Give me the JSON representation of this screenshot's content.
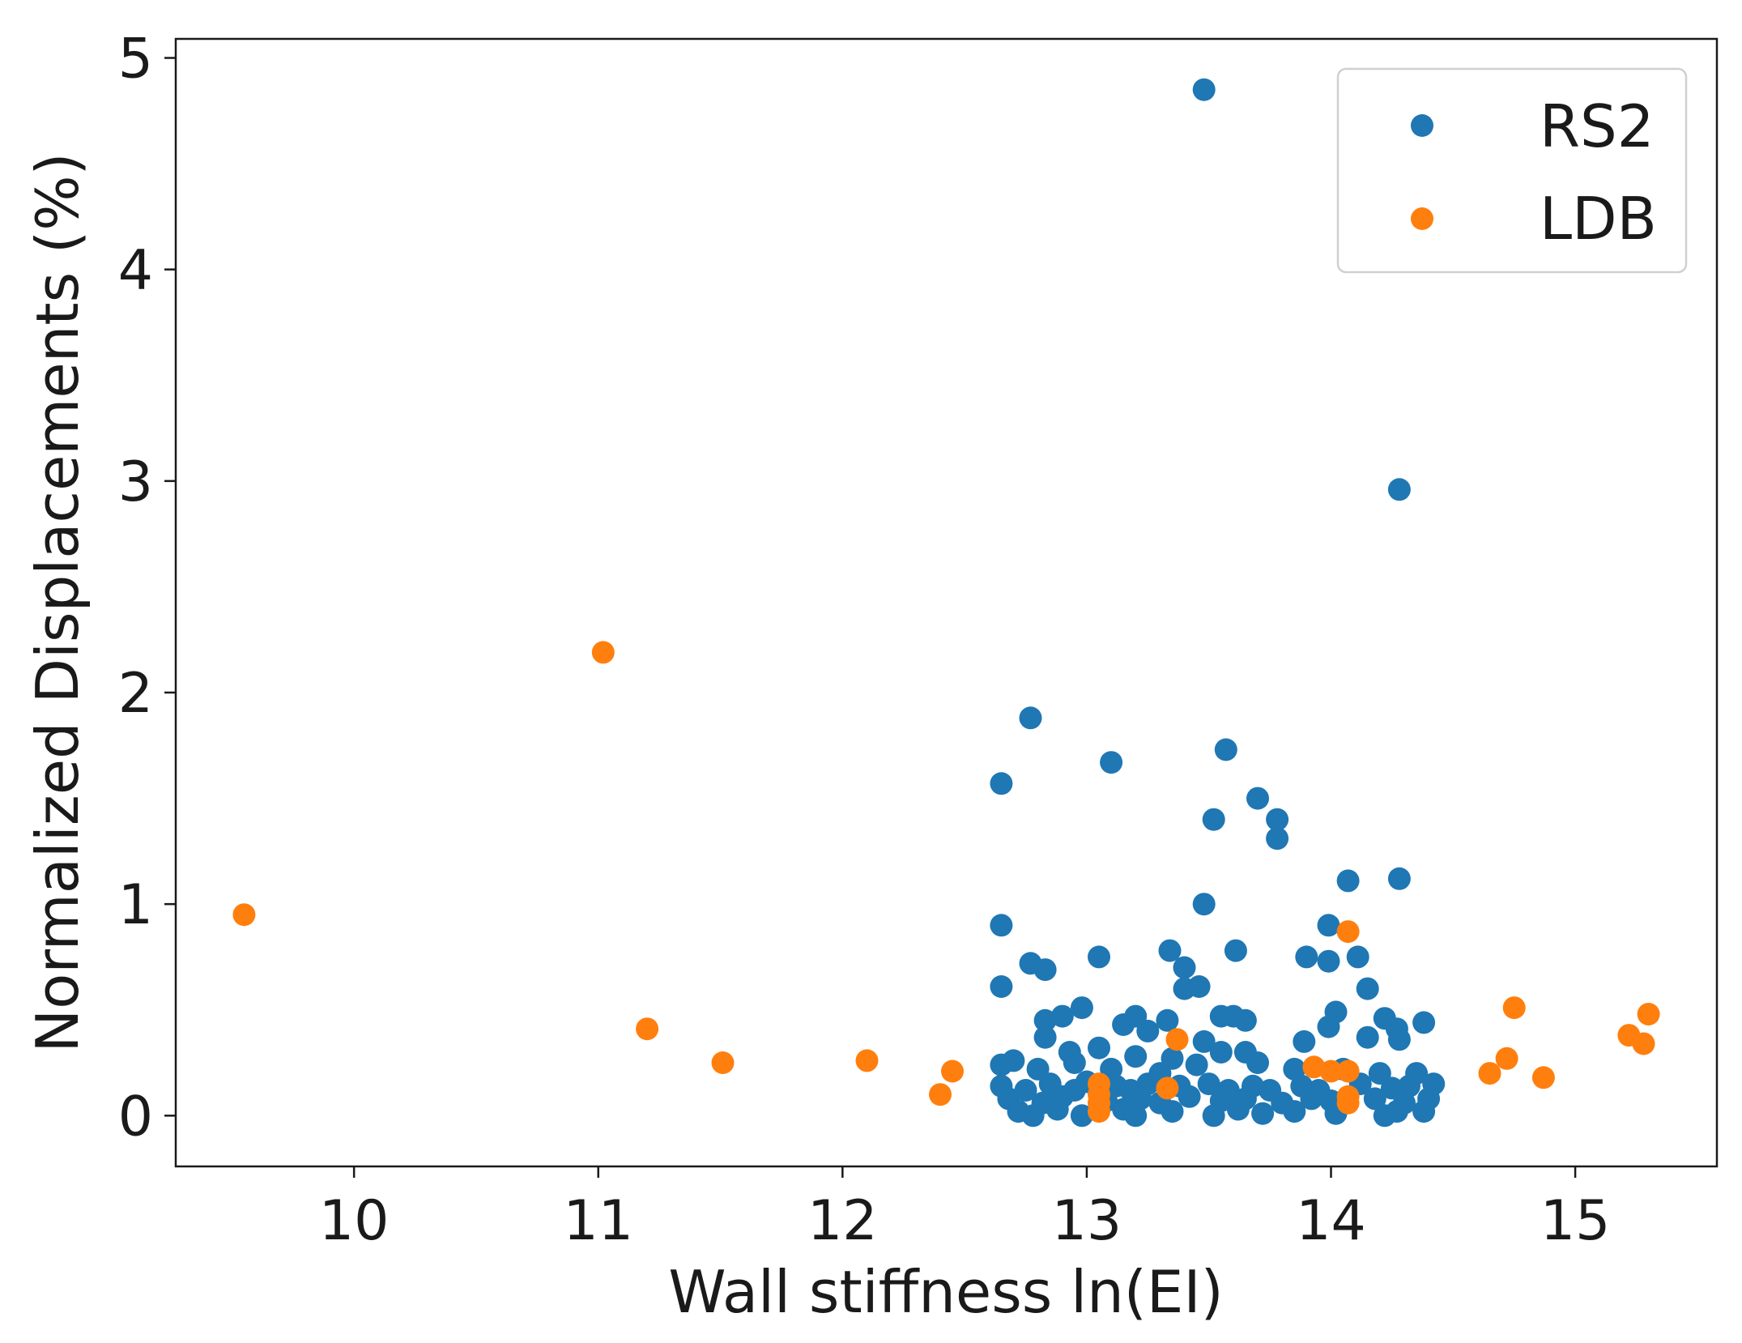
{
  "chart_data": {
    "type": "scatter",
    "title": "",
    "xlabel": "Wall stiffness ln(EI)",
    "ylabel": "Normalized Displacements (%)",
    "xlim": [
      9.27,
      15.58
    ],
    "ylim": [
      -0.24,
      5.09
    ],
    "x_ticks": [
      10,
      11,
      12,
      13,
      14,
      15
    ],
    "y_ticks": [
      0,
      1,
      2,
      3,
      4,
      5
    ],
    "legend": {
      "position": "top-right"
    },
    "series": [
      {
        "name": "RS2",
        "color": "#1f77b4",
        "points": [
          [
            13.48,
            4.85
          ],
          [
            14.28,
            2.96
          ],
          [
            12.77,
            1.88
          ],
          [
            13.57,
            1.73
          ],
          [
            13.1,
            1.67
          ],
          [
            12.65,
            1.57
          ],
          [
            13.7,
            1.5
          ],
          [
            13.52,
            1.4
          ],
          [
            13.78,
            1.4
          ],
          [
            13.78,
            1.31
          ],
          [
            14.28,
            1.12
          ],
          [
            14.07,
            1.11
          ],
          [
            13.48,
            1.0
          ],
          [
            12.65,
            0.9
          ],
          [
            13.99,
            0.9
          ],
          [
            13.34,
            0.78
          ],
          [
            13.61,
            0.78
          ],
          [
            12.77,
            0.72
          ],
          [
            13.05,
            0.75
          ],
          [
            13.9,
            0.75
          ],
          [
            13.99,
            0.73
          ],
          [
            14.11,
            0.75
          ],
          [
            13.4,
            0.7
          ],
          [
            12.83,
            0.69
          ],
          [
            12.65,
            0.61
          ],
          [
            13.46,
            0.61
          ],
          [
            13.4,
            0.6
          ],
          [
            14.15,
            0.6
          ],
          [
            12.98,
            0.51
          ],
          [
            13.15,
            0.43
          ],
          [
            13.2,
            0.47
          ],
          [
            13.55,
            0.47
          ],
          [
            13.6,
            0.47
          ],
          [
            14.02,
            0.49
          ],
          [
            12.9,
            0.47
          ],
          [
            12.83,
            0.45
          ],
          [
            13.33,
            0.45
          ],
          [
            13.65,
            0.45
          ],
          [
            14.22,
            0.46
          ],
          [
            14.38,
            0.44
          ],
          [
            13.99,
            0.42
          ],
          [
            14.27,
            0.41
          ],
          [
            13.25,
            0.4
          ],
          [
            12.83,
            0.37
          ],
          [
            13.48,
            0.35
          ],
          [
            13.89,
            0.35
          ],
          [
            14.15,
            0.37
          ],
          [
            14.28,
            0.36
          ],
          [
            12.93,
            0.3
          ],
          [
            13.05,
            0.32
          ],
          [
            13.55,
            0.3
          ],
          [
            13.65,
            0.3
          ],
          [
            13.2,
            0.28
          ],
          [
            13.35,
            0.27
          ],
          [
            12.65,
            0.24
          ],
          [
            12.7,
            0.26
          ],
          [
            12.8,
            0.22
          ],
          [
            12.95,
            0.25
          ],
          [
            13.1,
            0.22
          ],
          [
            13.3,
            0.2
          ],
          [
            13.45,
            0.24
          ],
          [
            13.7,
            0.25
          ],
          [
            13.85,
            0.22
          ],
          [
            14.05,
            0.22
          ],
          [
            14.2,
            0.2
          ],
          [
            14.35,
            0.2
          ],
          [
            12.65,
            0.14
          ],
          [
            12.75,
            0.12
          ],
          [
            12.85,
            0.15
          ],
          [
            12.95,
            0.12
          ],
          [
            13.0,
            0.16
          ],
          [
            13.12,
            0.14
          ],
          [
            13.18,
            0.12
          ],
          [
            13.25,
            0.15
          ],
          [
            13.38,
            0.14
          ],
          [
            13.5,
            0.15
          ],
          [
            13.58,
            0.12
          ],
          [
            13.68,
            0.14
          ],
          [
            13.75,
            0.12
          ],
          [
            13.88,
            0.14
          ],
          [
            13.95,
            0.12
          ],
          [
            14.12,
            0.15
          ],
          [
            14.25,
            0.13
          ],
          [
            14.32,
            0.14
          ],
          [
            14.42,
            0.15
          ],
          [
            12.68,
            0.08
          ],
          [
            12.82,
            0.06
          ],
          [
            12.9,
            0.09
          ],
          [
            13.08,
            0.07
          ],
          [
            13.22,
            0.08
          ],
          [
            13.3,
            0.06
          ],
          [
            13.42,
            0.09
          ],
          [
            13.55,
            0.07
          ],
          [
            13.65,
            0.08
          ],
          [
            13.8,
            0.06
          ],
          [
            13.92,
            0.08
          ],
          [
            14.0,
            0.07
          ],
          [
            14.18,
            0.08
          ],
          [
            14.3,
            0.06
          ],
          [
            14.4,
            0.08
          ],
          [
            12.72,
            0.02
          ],
          [
            12.78,
            0.0
          ],
          [
            12.88,
            0.03
          ],
          [
            12.98,
            0.0
          ],
          [
            13.15,
            0.03
          ],
          [
            13.2,
            0.0
          ],
          [
            13.35,
            0.02
          ],
          [
            13.52,
            0.0
          ],
          [
            13.62,
            0.03
          ],
          [
            13.72,
            0.01
          ],
          [
            13.85,
            0.02
          ],
          [
            14.02,
            0.01
          ],
          [
            14.22,
            0.0
          ],
          [
            14.27,
            0.02
          ],
          [
            14.38,
            0.02
          ]
        ]
      },
      {
        "name": "LDB",
        "color": "#ff7f0e",
        "points": [
          [
            9.55,
            0.95
          ],
          [
            11.02,
            2.19
          ],
          [
            11.2,
            0.41
          ],
          [
            11.51,
            0.25
          ],
          [
            12.1,
            0.26
          ],
          [
            12.4,
            0.1
          ],
          [
            12.45,
            0.21
          ],
          [
            13.05,
            0.15
          ],
          [
            13.05,
            0.1
          ],
          [
            13.05,
            0.06
          ],
          [
            13.05,
            0.02
          ],
          [
            13.33,
            0.13
          ],
          [
            13.37,
            0.36
          ],
          [
            13.93,
            0.23
          ],
          [
            14.0,
            0.21
          ],
          [
            14.07,
            0.87
          ],
          [
            14.07,
            0.21
          ],
          [
            14.07,
            0.09
          ],
          [
            14.07,
            0.06
          ],
          [
            14.65,
            0.2
          ],
          [
            14.72,
            0.27
          ],
          [
            14.75,
            0.51
          ],
          [
            14.87,
            0.18
          ],
          [
            15.22,
            0.38
          ],
          [
            15.28,
            0.34
          ],
          [
            15.3,
            0.48
          ]
        ]
      }
    ]
  }
}
